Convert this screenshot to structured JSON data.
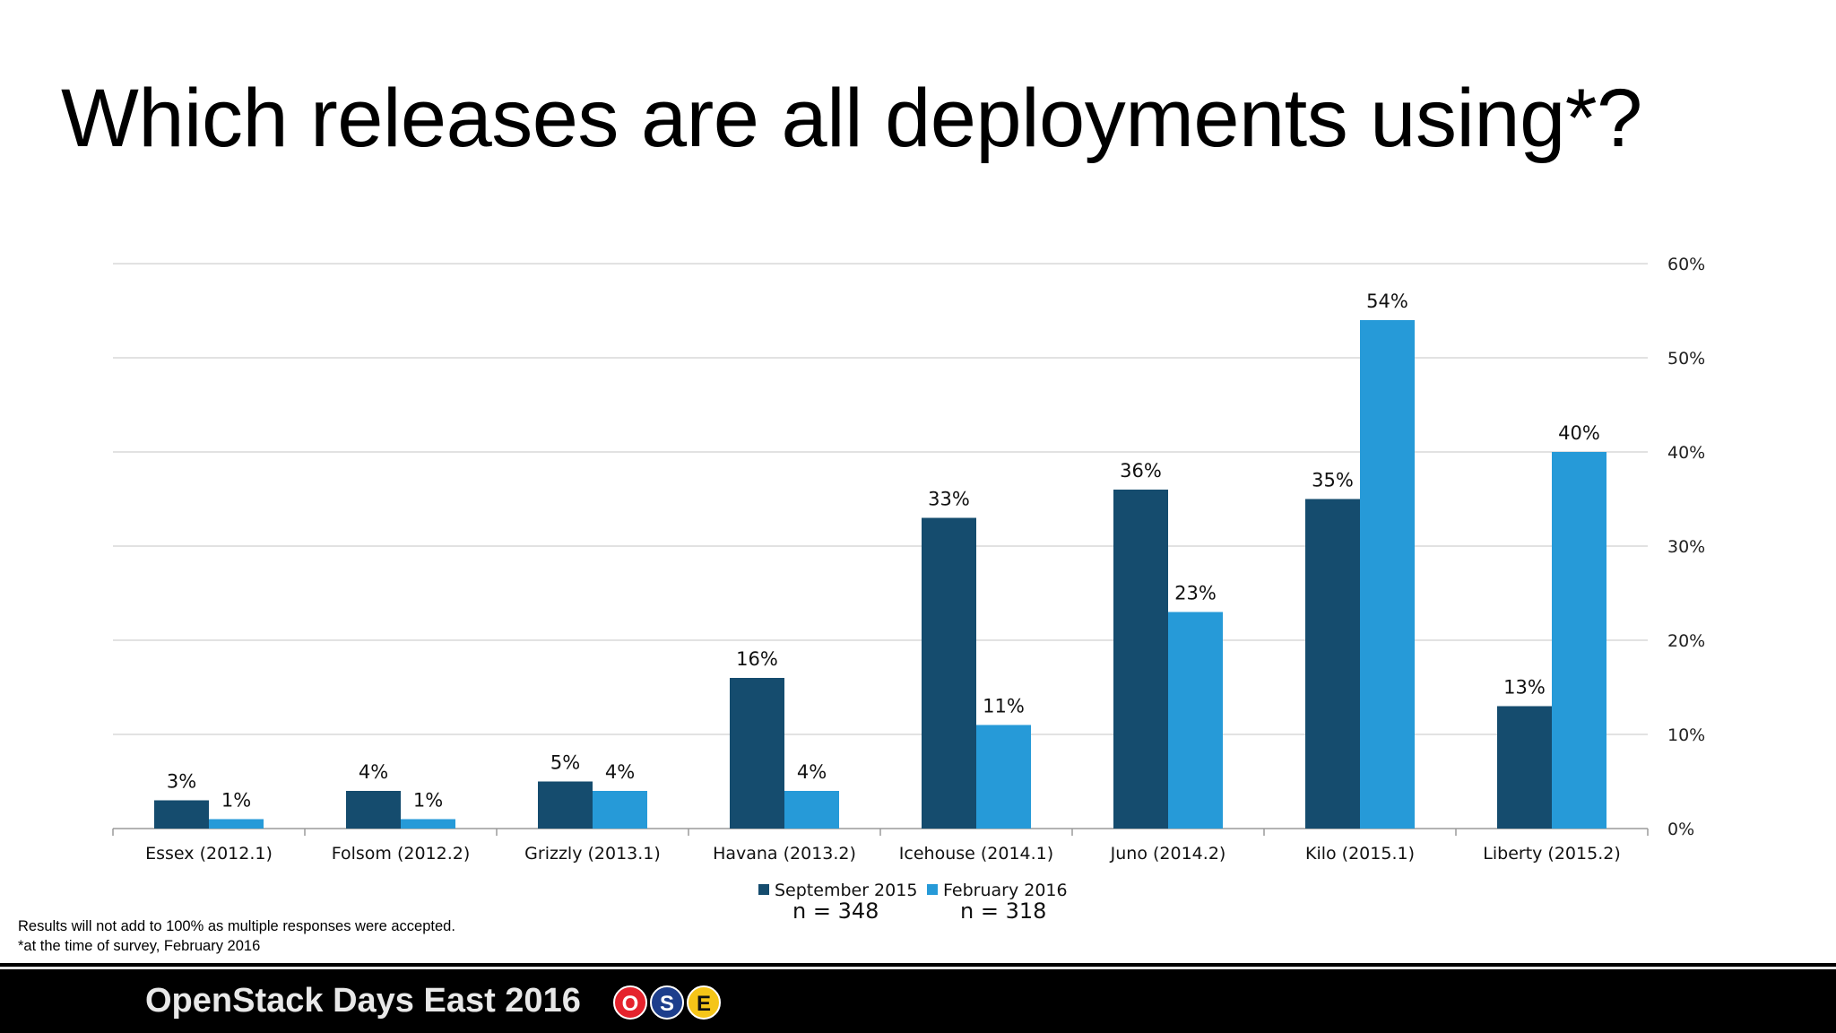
{
  "slide": {
    "title": "Which releases are all deployments using*?",
    "notes": [
      "Results will not add to 100% as multiple responses were accepted.",
      "*at the time of survey, February 2016"
    ],
    "footer": {
      "text": "OpenStack Days East 2016",
      "badges": [
        {
          "letter": "O",
          "color": "#e5232d",
          "text_color": "#ffffff"
        },
        {
          "letter": "S",
          "color": "#1d3e8c",
          "text_color": "#ffffff"
        },
        {
          "letter": "E",
          "color": "#f5c518",
          "text_color": "#111111"
        }
      ]
    }
  },
  "chart_data": {
    "type": "bar",
    "title": "",
    "xlabel": "",
    "ylabel": "",
    "categories": [
      "Essex (2012.1)",
      "Folsom (2012.2)",
      "Grizzly (2013.1)",
      "Havana (2013.2)",
      "Icehouse (2014.1)",
      "Juno (2014.2)",
      "Kilo (2015.1)",
      "Liberty (2015.2)"
    ],
    "series": [
      {
        "name": "September 2015",
        "n_label": "n = 348",
        "color": "#154c6e",
        "values": [
          3,
          4,
          5,
          16,
          33,
          36,
          35,
          13
        ]
      },
      {
        "name": "February 2016",
        "n_label": "n = 318",
        "color": "#269ad8",
        "values": [
          1,
          1,
          4,
          4,
          11,
          23,
          54,
          40
        ]
      }
    ],
    "ylim": [
      0,
      60
    ],
    "yticks": [
      0,
      10,
      20,
      30,
      40,
      50,
      60
    ],
    "y_tick_suffix": "%",
    "y_axis_side": "right",
    "grid": true,
    "legend_position": "bottom"
  }
}
